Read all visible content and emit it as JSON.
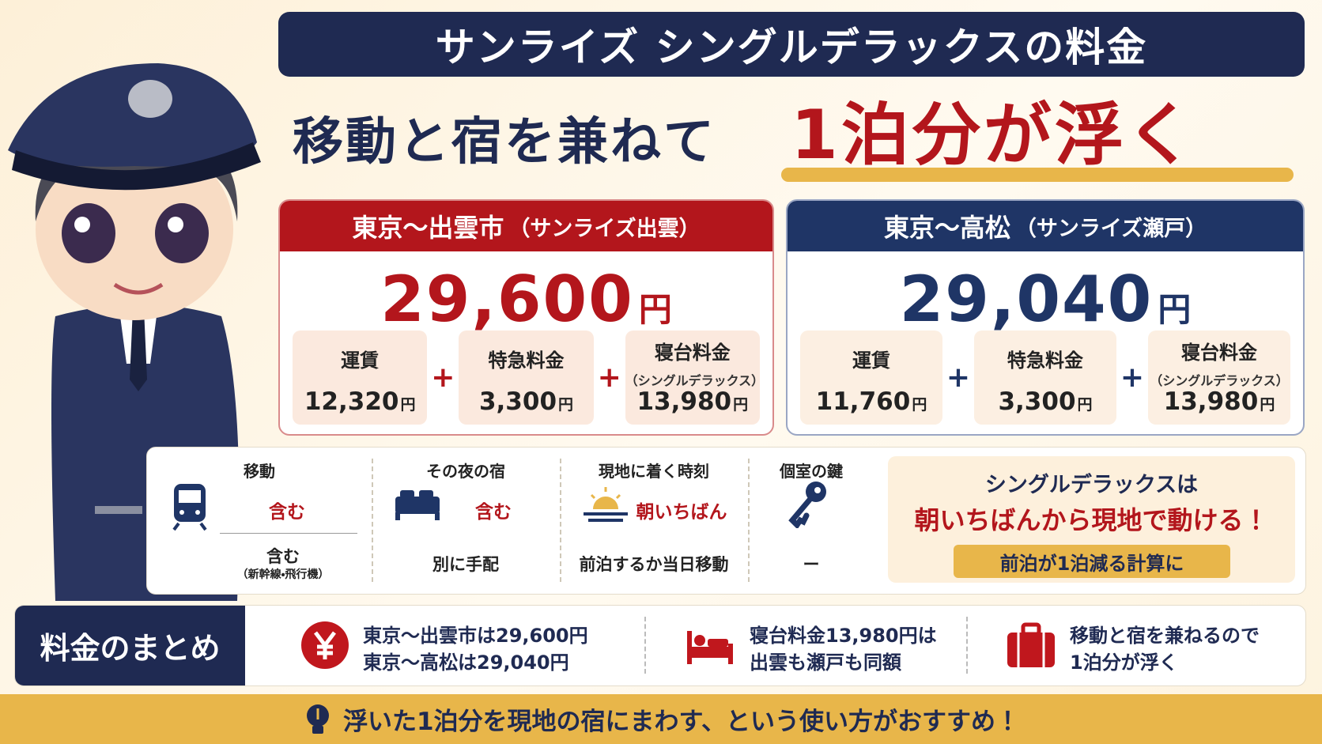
{
  "title": "サンライズ シングルデラックスの料金",
  "headline": {
    "text": "移動と宿を兼ねて",
    "highlight": "1泊分が浮く"
  },
  "routes": [
    {
      "name": "東京〜出雲市",
      "train": "（サンライズ出雲）",
      "total": "29,600",
      "unit": "円",
      "operator": "+",
      "items": [
        {
          "label": "運賃",
          "value": "12,320",
          "unit": "円"
        },
        {
          "label": "特急料金",
          "value": "3,300",
          "unit": "円"
        },
        {
          "label": "寝台料金",
          "note": "（シングルデラックス）",
          "value": "13,980",
          "unit": "円"
        }
      ]
    },
    {
      "name": "東京〜高松",
      "train": "（サンライズ瀬戸）",
      "total": "29,040",
      "unit": "円",
      "operator": "+",
      "items": [
        {
          "label": "運賃",
          "value": "11,760",
          "unit": "円"
        },
        {
          "label": "特急料金",
          "value": "3,300",
          "unit": "円"
        },
        {
          "label": "寝台料金",
          "note": "（シングルデラックス）",
          "value": "13,980",
          "unit": "円"
        }
      ]
    }
  ],
  "comparison": {
    "columns": [
      {
        "label": "移動",
        "sunrise": "含む",
        "other": "含む",
        "other_note": "（新幹線・飛行機）"
      },
      {
        "label": "その夜の宿",
        "sunrise": "含む",
        "other": "別に手配"
      },
      {
        "label": "現地に着く時刻",
        "sunrise": "朝いちばん",
        "other": "前泊するか当日移動"
      },
      {
        "label": "個室の鍵",
        "other": "ー"
      }
    ],
    "callout": {
      "lines": [
        "シングルデラックスは",
        "朝いちばんから現地で動ける！"
      ],
      "badge": "前泊が1泊減る計算に"
    }
  },
  "summary": {
    "label": "料金のまとめ",
    "items": [
      {
        "lines": [
          "東京〜出雲市は29,600円",
          "東京〜高松は29,040円"
        ]
      },
      {
        "lines": [
          "寝台料金13,980円は",
          "出雲も瀬戸も同額"
        ]
      },
      {
        "lines": [
          "移動と宿を兼ねるので",
          "1泊分が浮く"
        ]
      }
    ]
  },
  "footer": "浮いた1泊分を現地の宿にまわす、という使い方がおすすめ！"
}
